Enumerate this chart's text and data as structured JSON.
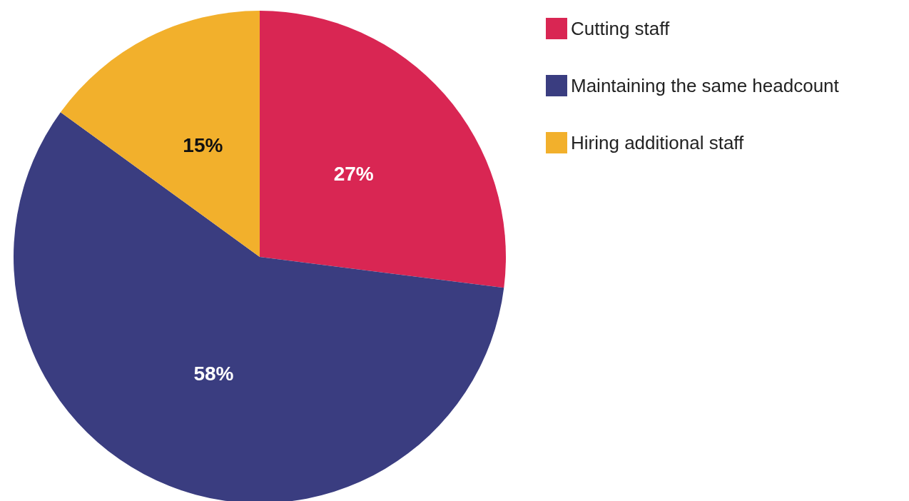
{
  "chart_data": {
    "type": "pie",
    "categories": [
      "Cutting staff",
      "Maintaining the same headcount",
      "Hiring additional staff"
    ],
    "values": [
      27,
      58,
      15
    ],
    "colors": [
      "#d92653",
      "#3a3d80",
      "#f2b02c"
    ],
    "value_labels": [
      "27%",
      "58%",
      "15%"
    ],
    "legend": "top right"
  }
}
